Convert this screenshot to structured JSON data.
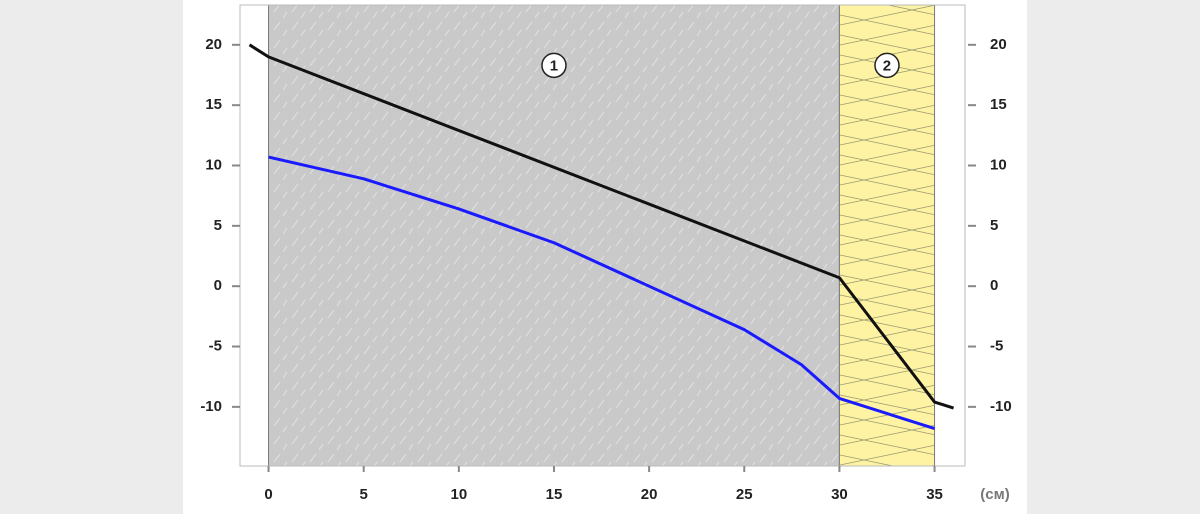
{
  "chart_data": {
    "type": "line",
    "x_unit": "(см)",
    "layers": [
      {
        "label": "1",
        "from": 0,
        "to": 30,
        "fill": "#c9c9c9"
      },
      {
        "label": "2",
        "from": 30,
        "to": 35,
        "fill": "#fdf3a3"
      }
    ],
    "layer_label_y": 18.3,
    "series": [
      {
        "color": "#111111",
        "x": [
          -1,
          0,
          30,
          35,
          36
        ],
        "values": [
          20,
          19,
          0.7,
          -9.6,
          -10.1
        ]
      },
      {
        "color": "#1a1aff",
        "x": [
          0,
          5,
          10,
          15,
          20,
          25,
          28,
          30,
          35
        ],
        "values": [
          10.7,
          8.9,
          6.4,
          3.6,
          0,
          -3.6,
          -6.5,
          -9.3,
          -11.8
        ]
      }
    ],
    "xlim": [
      -1.5,
      36.6
    ],
    "xticks": [
      0,
      5,
      10,
      15,
      20,
      25,
      30,
      35
    ],
    "ylim": [
      -14.9,
      23.3
    ],
    "yticks": [
      -10,
      -5,
      0,
      5,
      10,
      15,
      20
    ]
  }
}
